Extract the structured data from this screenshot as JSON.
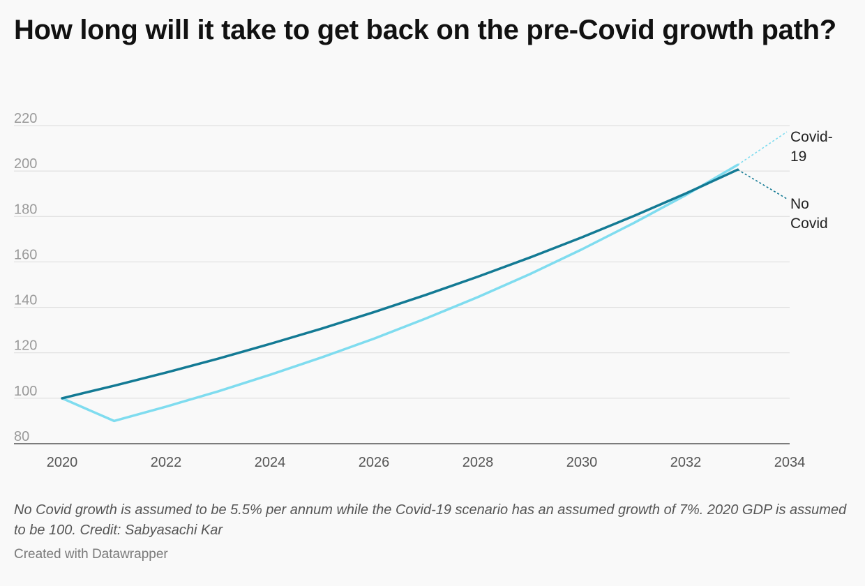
{
  "title": "How long will it take to get back on the pre-Covid growth path?",
  "notes": "No Covid growth is assumed to be 5.5% per annum while the Covid-19 scenario has an assumed growth of 7%. 2020 GDP is assumed to be 100. Credit: Sabyasachi Kar",
  "credit": "Created with Datawrapper",
  "chart_data": {
    "type": "line",
    "title": "How long will it take to get back on the pre-Covid growth path?",
    "xlabel": "",
    "ylabel": "",
    "xlim": [
      2020,
      2034
    ],
    "ylim": [
      80,
      220
    ],
    "x_ticks": [
      2020,
      2022,
      2024,
      2026,
      2028,
      2030,
      2032,
      2034
    ],
    "y_ticks": [
      80,
      100,
      120,
      140,
      160,
      180,
      200,
      220
    ],
    "grid": true,
    "legend": "direct labels at line ends (right)",
    "x": [
      2020,
      2021,
      2022,
      2023,
      2024,
      2025,
      2026,
      2027,
      2028,
      2029,
      2030,
      2031,
      2032,
      2033
    ],
    "series": [
      {
        "name": "No Covid",
        "label_lines": [
          "No",
          "Covid"
        ],
        "color": "#137a94",
        "values": [
          100.0,
          105.5,
          111.3,
          117.4,
          123.9,
          130.7,
          137.9,
          145.5,
          153.5,
          161.9,
          170.8,
          180.2,
          190.1,
          200.6
        ]
      },
      {
        "name": "Covid-19",
        "label_lines": [
          "Covid-",
          "19"
        ],
        "color": "#7fdcef",
        "values": [
          100.0,
          90.0,
          96.3,
          103.0,
          110.3,
          118.0,
          126.2,
          135.1,
          144.5,
          154.6,
          165.5,
          177.1,
          189.4,
          202.7
        ]
      }
    ]
  }
}
